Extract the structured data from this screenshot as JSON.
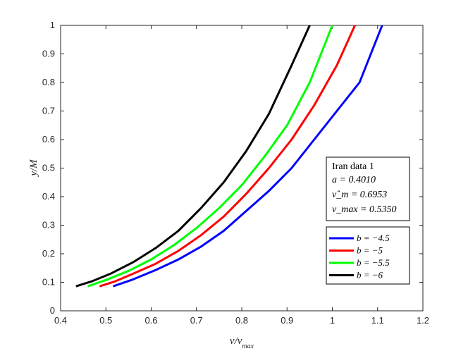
{
  "chart_data": {
    "type": "line",
    "xlabel": "ν/ν_max",
    "ylabel": "y/M",
    "xlim": [
      0.4,
      1.2
    ],
    "ylim": [
      0,
      1
    ],
    "xticks": [
      "0.4",
      "0.5",
      "0.6",
      "0.7",
      "0.8",
      "0.9",
      "1",
      "1.1",
      "1.2"
    ],
    "yticks": [
      "0",
      "0.1",
      "0.2",
      "0.3",
      "0.4",
      "0.5",
      "0.6",
      "0.7",
      "0.8",
      "0.9",
      "1"
    ],
    "grid": false,
    "legend_position": "bottom-right",
    "series": [
      {
        "name": "b = −4.5",
        "color": "#0000ff",
        "x": [
          0.516,
          0.56,
          0.61,
          0.66,
          0.71,
          0.76,
          0.81,
          0.86,
          0.91,
          0.96,
          1.01,
          1.06,
          1.11
        ],
        "y": [
          0.086,
          0.11,
          0.143,
          0.18,
          0.225,
          0.28,
          0.35,
          0.42,
          0.5,
          0.6,
          0.7,
          0.8,
          1.0
        ]
      },
      {
        "name": "b = −5",
        "color": "#ff0000",
        "x": [
          0.486,
          0.52,
          0.56,
          0.61,
          0.66,
          0.71,
          0.76,
          0.81,
          0.86,
          0.91,
          0.96,
          1.01,
          1.05
        ],
        "y": [
          0.086,
          0.103,
          0.13,
          0.165,
          0.21,
          0.265,
          0.33,
          0.41,
          0.5,
          0.6,
          0.72,
          0.86,
          1.0
        ]
      },
      {
        "name": "b = −5.5",
        "color": "#00ff00",
        "x": [
          0.46,
          0.5,
          0.55,
          0.6,
          0.65,
          0.7,
          0.75,
          0.8,
          0.85,
          0.9,
          0.95,
          1.0
        ],
        "y": [
          0.086,
          0.108,
          0.14,
          0.18,
          0.23,
          0.29,
          0.36,
          0.44,
          0.54,
          0.65,
          0.8,
          1.0
        ]
      },
      {
        "name": "b = −6",
        "color": "#000000",
        "x": [
          0.434,
          0.47,
          0.51,
          0.56,
          0.61,
          0.66,
          0.71,
          0.76,
          0.81,
          0.86,
          0.91,
          0.95
        ],
        "y": [
          0.086,
          0.104,
          0.13,
          0.17,
          0.22,
          0.28,
          0.36,
          0.45,
          0.56,
          0.69,
          0.86,
          1.0
        ]
      }
    ],
    "info_box": {
      "title": "Iran data 1",
      "lines": [
        "a = 0.4010",
        "ν̂_m = 0.6953",
        "ν_max = 0.5350"
      ]
    }
  }
}
